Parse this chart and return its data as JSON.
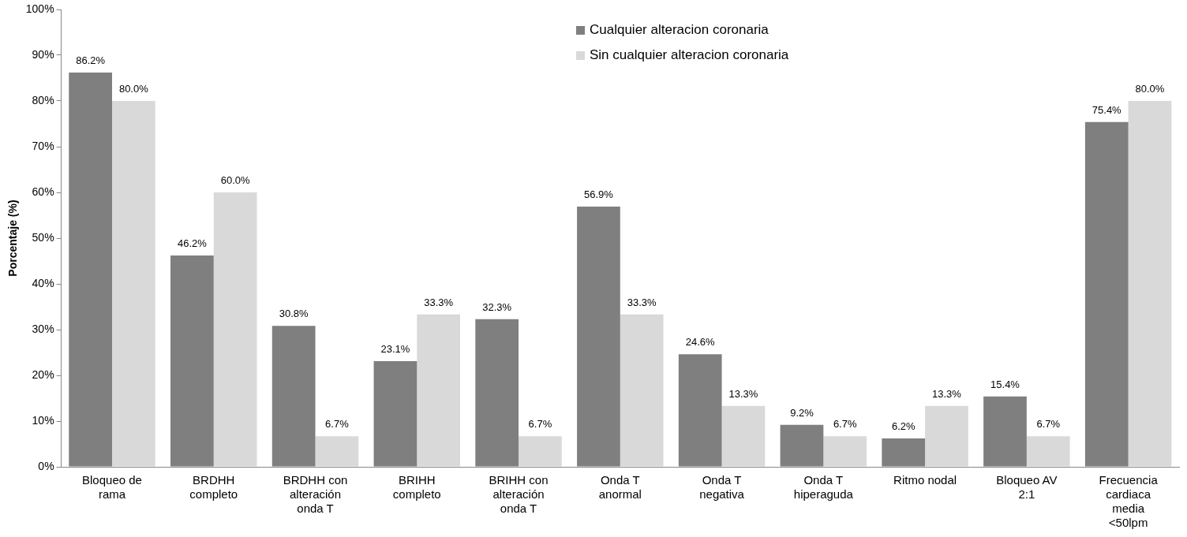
{
  "chart_data": {
    "type": "bar",
    "ylabel": "Porcentaje (%)",
    "categories": [
      "Bloqueo de rama",
      "BRDHH completo",
      "BRDHH con alteración onda T",
      "BRIHH completo",
      "BRIHH con alteración onda T",
      "Onda T anormal",
      "Onda T negativa",
      "Onda T hiperaguda",
      "Ritmo nodal",
      "Bloqueo AV 2:1",
      "Frecuencia cardiaca media <50lpm"
    ],
    "series": [
      {
        "name": "Cualquier alteracion coronaria",
        "color": "#7f7f7f",
        "values": [
          86.2,
          46.2,
          30.8,
          23.1,
          32.3,
          56.9,
          24.6,
          9.2,
          6.2,
          15.4,
          75.4
        ],
        "value_labels": [
          "86.2%",
          "46.2%",
          "30.8%",
          "23.1%",
          "32.3%",
          "56.9%",
          "24.6%",
          "9.2%",
          "6.2%",
          "15.4%",
          "75.4%"
        ]
      },
      {
        "name": "Sin cualquier alteracion coronaria",
        "color": "#d9d9d9",
        "values": [
          80.0,
          60.0,
          6.7,
          33.3,
          6.7,
          33.3,
          13.3,
          6.7,
          13.3,
          6.7,
          80.0
        ],
        "value_labels": [
          "80.0%",
          "60.0%",
          "6.7%",
          "33.3%",
          "6.7%",
          "33.3%",
          "13.3%",
          "6.7%",
          "13.3%",
          "6.7%",
          "80.0%"
        ]
      }
    ],
    "ylim": [
      0,
      100
    ],
    "yticks": [
      {
        "value": 0,
        "label": "0%"
      },
      {
        "value": 10,
        "label": "10%"
      },
      {
        "value": 20,
        "label": "20%"
      },
      {
        "value": 30,
        "label": "30%"
      },
      {
        "value": 40,
        "label": "40%"
      },
      {
        "value": 50,
        "label": "50%"
      },
      {
        "value": 60,
        "label": "60%"
      },
      {
        "value": 70,
        "label": "70%"
      },
      {
        "value": 80,
        "label": "80%"
      },
      {
        "value": 90,
        "label": "90%"
      },
      {
        "value": 100,
        "label": "100%"
      }
    ],
    "grid": false,
    "legend": "top"
  }
}
